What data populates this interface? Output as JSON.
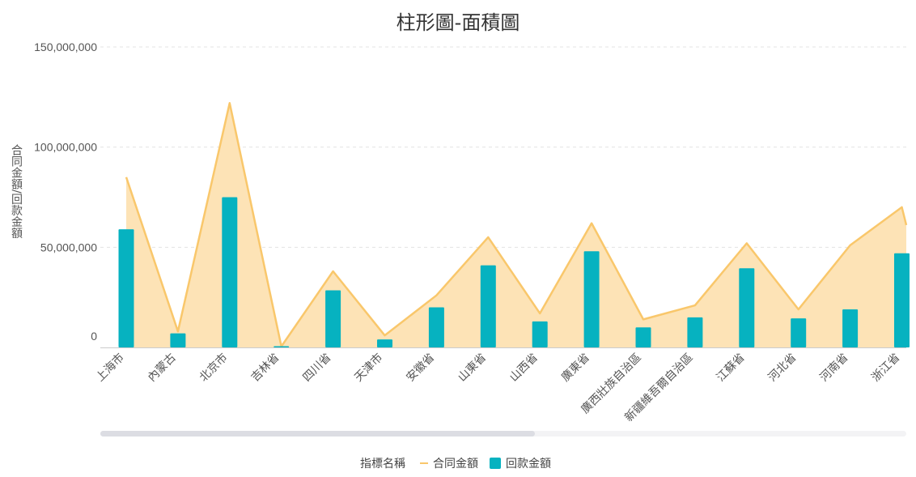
{
  "chart_data": {
    "type": "bar",
    "title": "柱形圖-面積圖",
    "ylabel": "合同金額/回款金額",
    "xlabel": "",
    "ylim": [
      0,
      150000000
    ],
    "y_ticks": [
      0,
      50000000,
      100000000,
      150000000
    ],
    "y_tick_labels": [
      "0",
      "50,000,000",
      "100,000,000",
      "150,000,000"
    ],
    "grid": true,
    "legend_position": "bottom",
    "legend_title": "指標名稱",
    "categories": [
      "上海市",
      "內蒙古",
      "北京市",
      "吉林省",
      "四川省",
      "天津市",
      "安徽省",
      "山東省",
      "山西省",
      "廣東省",
      "廣西壯族自治區",
      "新疆維吾爾自治區",
      "江蘇省",
      "河北省",
      "河南省",
      "浙江省"
    ],
    "series": [
      {
        "name": "合同金額",
        "type": "area",
        "color": "#f9c76b",
        "fill": "#fde3b6",
        "values": [
          85000000,
          8000000,
          122000000,
          500000,
          38000000,
          6000000,
          26000000,
          55000000,
          17000000,
          62000000,
          14000000,
          21000000,
          52000000,
          19000000,
          51000000,
          70000000
        ]
      },
      {
        "name": "回款金額",
        "type": "bar",
        "color": "#06b2c0",
        "values": [
          59000000,
          7000000,
          75000000,
          600000,
          28500000,
          4000000,
          20000000,
          41000000,
          13000000,
          48000000,
          10000000,
          15000000,
          39500000,
          14500000,
          19000000,
          47000000
        ]
      }
    ]
  }
}
